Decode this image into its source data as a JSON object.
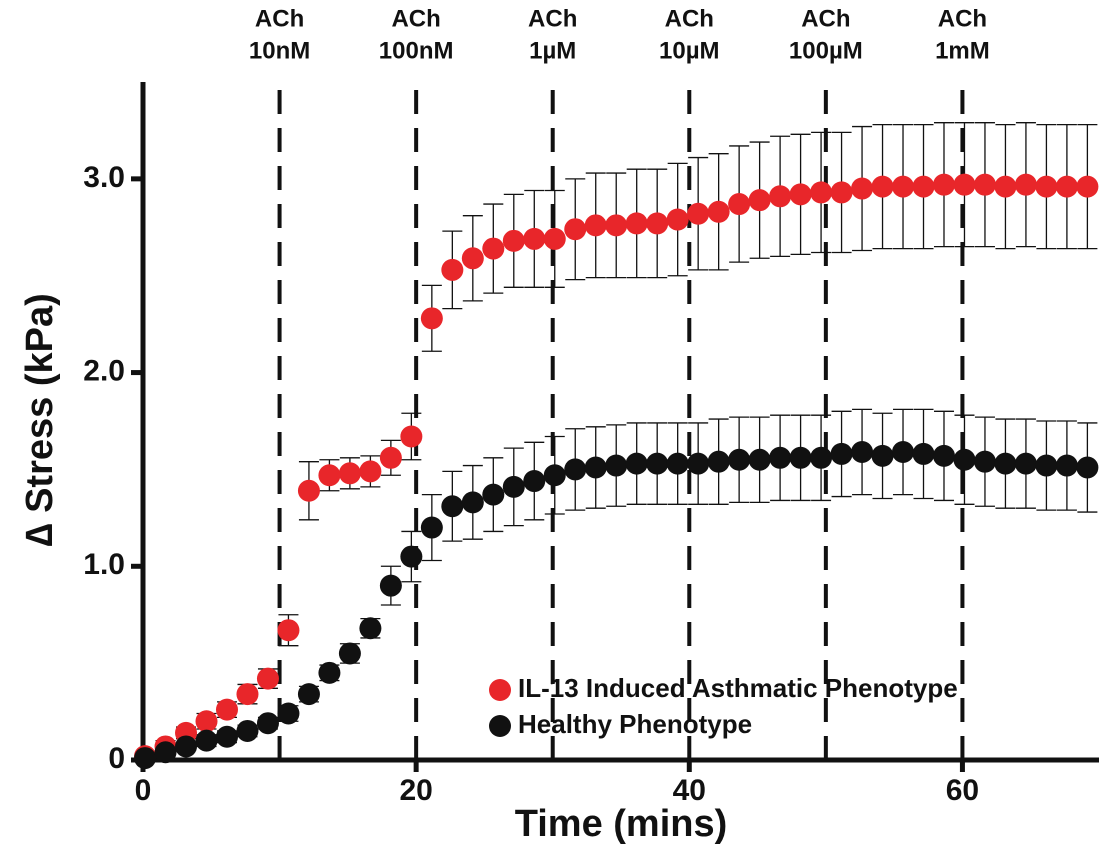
{
  "chart_data": {
    "type": "scatter",
    "x_label": "Time (mins)",
    "y_label": "∆ Stress (kPa)",
    "xlim": [
      0,
      70
    ],
    "ylim": [
      0,
      3.5
    ],
    "xticks": [
      0,
      20,
      40,
      60
    ],
    "yticks": [
      0,
      {
        "value": 1,
        "label": "1.0"
      },
      {
        "value": 2,
        "label": "2.0"
      },
      {
        "value": 3,
        "label": "3.0"
      }
    ],
    "legend": "lower right",
    "annotations": [
      {
        "x": 10,
        "text": [
          "ACh",
          "10nM"
        ]
      },
      {
        "x": 20,
        "text": [
          "ACh",
          "100nM"
        ]
      },
      {
        "x": 30,
        "text": [
          "ACh",
          "1µM"
        ]
      },
      {
        "x": 40,
        "text": [
          "ACh",
          "10µM"
        ]
      },
      {
        "x": 50,
        "text": [
          "ACh",
          "100µM"
        ]
      },
      {
        "x": 60,
        "text": [
          "ACh",
          "1mM"
        ]
      }
    ],
    "x": [
      0.15,
      1.65,
      3.15,
      4.65,
      6.15,
      7.65,
      9.15,
      10.65,
      12.15,
      13.65,
      15.15,
      16.65,
      18.15,
      19.65,
      21.15,
      22.65,
      24.15,
      25.65,
      27.15,
      28.65,
      30.15,
      31.65,
      33.15,
      34.65,
      36.15,
      37.65,
      39.15,
      40.65,
      42.15,
      43.65,
      45.15,
      46.65,
      48.15,
      49.65,
      51.15,
      52.65,
      54.15,
      55.65,
      57.15,
      58.65,
      60.15,
      61.65,
      63.15,
      64.65,
      66.15,
      67.65,
      69.15
    ],
    "series": [
      {
        "name": "IL-13 Induced Asthmatic Phenotype",
        "color": "#e8262a",
        "values": [
          0.02,
          0.07,
          0.14,
          0.2,
          0.26,
          0.34,
          0.42,
          0.67,
          1.39,
          1.47,
          1.48,
          1.49,
          1.56,
          1.67,
          2.28,
          2.53,
          2.59,
          2.64,
          2.68,
          2.69,
          2.69,
          2.74,
          2.76,
          2.76,
          2.77,
          2.77,
          2.79,
          2.82,
          2.83,
          2.87,
          2.89,
          2.91,
          2.92,
          2.93,
          2.93,
          2.95,
          2.96,
          2.96,
          2.96,
          2.97,
          2.97,
          2.97,
          2.96,
          2.97,
          2.96,
          2.96,
          2.96
        ],
        "errors": [
          0.02,
          0.03,
          0.03,
          0.04,
          0.04,
          0.05,
          0.05,
          0.08,
          0.15,
          0.08,
          0.08,
          0.08,
          0.09,
          0.12,
          0.17,
          0.2,
          0.22,
          0.23,
          0.24,
          0.25,
          0.25,
          0.26,
          0.27,
          0.27,
          0.28,
          0.28,
          0.29,
          0.29,
          0.3,
          0.3,
          0.3,
          0.31,
          0.31,
          0.31,
          0.31,
          0.32,
          0.32,
          0.32,
          0.32,
          0.32,
          0.32,
          0.32,
          0.32,
          0.32,
          0.32,
          0.32,
          0.32
        ]
      },
      {
        "name": "Healthy Phenotype",
        "color": "#111111",
        "values": [
          0.01,
          0.04,
          0.07,
          0.1,
          0.12,
          0.15,
          0.19,
          0.24,
          0.34,
          0.45,
          0.55,
          0.68,
          0.9,
          1.05,
          1.2,
          1.31,
          1.33,
          1.37,
          1.41,
          1.44,
          1.47,
          1.5,
          1.51,
          1.52,
          1.53,
          1.53,
          1.53,
          1.53,
          1.54,
          1.55,
          1.55,
          1.56,
          1.56,
          1.56,
          1.58,
          1.59,
          1.57,
          1.59,
          1.58,
          1.57,
          1.55,
          1.54,
          1.53,
          1.53,
          1.52,
          1.52,
          1.51
        ],
        "errors": [
          0.02,
          0.02,
          0.02,
          0.03,
          0.03,
          0.03,
          0.03,
          0.04,
          0.04,
          0.04,
          0.05,
          0.05,
          0.1,
          0.13,
          0.17,
          0.18,
          0.19,
          0.19,
          0.2,
          0.2,
          0.2,
          0.21,
          0.21,
          0.21,
          0.21,
          0.21,
          0.21,
          0.21,
          0.22,
          0.22,
          0.22,
          0.22,
          0.22,
          0.22,
          0.22,
          0.22,
          0.22,
          0.22,
          0.23,
          0.23,
          0.23,
          0.23,
          0.23,
          0.23,
          0.23,
          0.23,
          0.23
        ]
      }
    ]
  }
}
